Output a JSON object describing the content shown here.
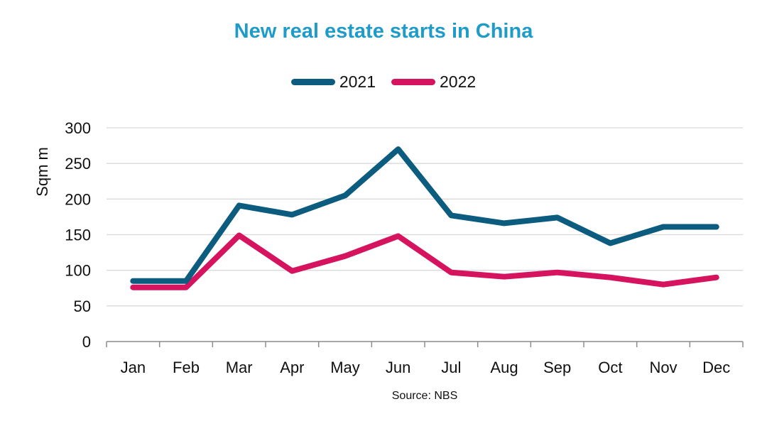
{
  "chart_data": {
    "type": "line",
    "title": "New real estate starts in China",
    "ylabel": "Sqm m",
    "xlabel": "",
    "source": "Source: NBS",
    "categories": [
      "Jan",
      "Feb",
      "Mar",
      "Apr",
      "May",
      "Jun",
      "Jul",
      "Aug",
      "Sep",
      "Oct",
      "Nov",
      "Dec"
    ],
    "ylim": [
      0,
      300
    ],
    "yticks": [
      "0",
      "50",
      "100",
      "150",
      "200",
      "250",
      "300"
    ],
    "grid": true,
    "legend_position": "top-center",
    "series": [
      {
        "name": "2021",
        "color": "#0b5c7f",
        "values": [
          85,
          85,
          191,
          178,
          205,
          270,
          177,
          166,
          174,
          138,
          161,
          161
        ]
      },
      {
        "name": "2022",
        "color": "#d6135e",
        "values": [
          76,
          76,
          149,
          99,
          120,
          148,
          97,
          91,
          97,
          90,
          80,
          90
        ]
      }
    ]
  }
}
